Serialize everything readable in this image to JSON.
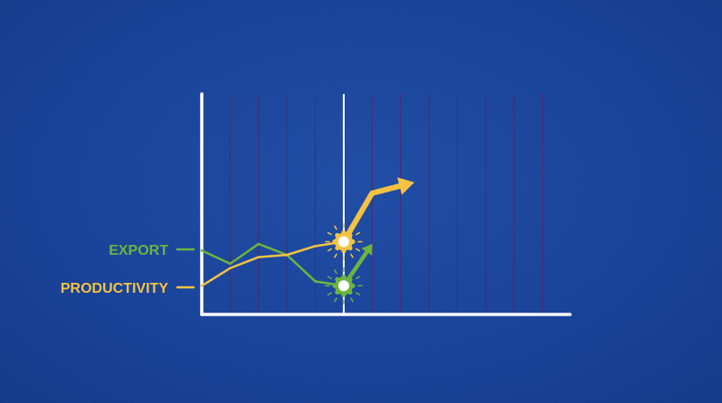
{
  "chart_data": {
    "type": "line",
    "title": "",
    "xlabel": "",
    "ylabel": "",
    "grid": "vertical",
    "x": [
      0,
      1,
      2,
      3,
      4,
      5,
      6,
      7,
      8,
      9,
      10,
      11,
      12
    ],
    "xlim": [
      0,
      13
    ],
    "ylim": [
      0,
      10
    ],
    "marker_x": 5,
    "series": [
      {
        "name": "EXPORT",
        "color": "#6db33f",
        "x": [
          0,
          1,
          2,
          3,
          4,
          5
        ],
        "values": [
          2.9,
          2.3,
          3.2,
          2.7,
          1.5,
          1.3
        ],
        "forecast": {
          "x": [
            5,
            5.9
          ],
          "values": [
            1.3,
            3.0
          ]
        }
      },
      {
        "name": "PRODUCTIVITY",
        "color": "#f5c242",
        "x": [
          0,
          1,
          2,
          3,
          4,
          5
        ],
        "values": [
          1.3,
          2.1,
          2.6,
          2.7,
          3.1,
          3.3
        ],
        "forecast": {
          "x": [
            5,
            6,
            7.2
          ],
          "values": [
            3.3,
            5.5,
            5.9
          ]
        }
      }
    ]
  }
}
